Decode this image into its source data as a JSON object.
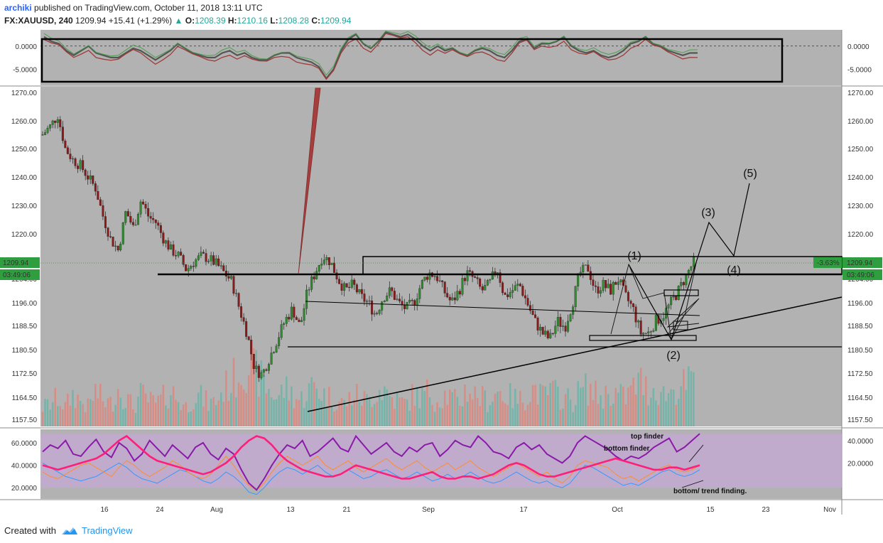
{
  "header": {
    "author": "archiki",
    "published_text": "published on TradingView.com, October 11, 2018 13:11 UTC",
    "symbol": "FX:XAUUSD, 240",
    "last": "1209.94",
    "change": "+15.41 (+1.29%)",
    "change_icon": "triangle-up-icon",
    "o_label": "O:",
    "o_value": "1208.39",
    "h_label": "H:",
    "h_value": "1210.16",
    "l_label": "L:",
    "l_value": "1208.28",
    "c_label": "C:",
    "c_value": "1209.94"
  },
  "footer": {
    "created_with": "Created with",
    "brand": "TradingView",
    "brand_icon": "tradingview-logo-icon"
  },
  "colors": {
    "plot_bg": "#b2b2b2",
    "bull": "#2e8b2e",
    "bear": "#8b1a1a",
    "vol_bull": "#6fb3a6",
    "vol_bear": "#d98880",
    "badge": "#2e9e3e",
    "rsi_band": "#c8a8d8",
    "ind_red": "#9e3a3a",
    "ind_green": "#3f9a3f",
    "ind_dark": "#555555",
    "stoch_purple": "#8a1aa8",
    "stoch_pink": "#ff1f7a",
    "stoch_orange": "#ff8c2a",
    "stoch_blue": "#3399ff"
  },
  "chart_data": [
    {
      "type": "line",
      "panel": "top-oscillator",
      "y_ticks": [
        "0.0000",
        "-5.0000"
      ],
      "y_range": [
        -8.5,
        3.5
      ],
      "series": [
        {
          "values": [
            2.0,
            1.0,
            0.5,
            -1.0,
            -2.0,
            -1.0,
            0.0,
            -1.5,
            -2.0,
            -2.5,
            -2.5,
            -1.5,
            -0.5,
            -1.0,
            -2.0,
            -3.0,
            -2.0,
            -1.0,
            0.5,
            -0.5,
            -1.5,
            -2.0,
            -2.5,
            -2.5,
            -1.5,
            -1.0,
            -2.0,
            -1.5,
            -2.5,
            -3.0,
            -3.0,
            -2.0,
            -1.5,
            -1.5,
            -2.5,
            -3.0,
            -3.5,
            -4.5,
            -7.0,
            -5.0,
            -1.0,
            1.5,
            2.5,
            0.5,
            -0.5,
            1.0,
            3.0,
            2.5,
            2.0,
            2.5,
            1.5,
            0.0,
            -1.0,
            0.0,
            -1.0,
            -0.5,
            -1.5,
            -2.0,
            -1.0,
            -0.5,
            -1.0,
            -2.0,
            -2.5,
            -1.0,
            1.0,
            1.5,
            -0.5,
            0.5,
            0.5,
            1.0,
            2.0,
            0.0,
            -1.0,
            -1.5,
            -1.0,
            -2.0,
            -2.5,
            -2.0,
            -1.0,
            0.5,
            1.0,
            2.0,
            0.5,
            0.0,
            -1.0,
            -1.5,
            -2.0,
            -1.5,
            -1.5
          ]
        }
      ]
    },
    {
      "type": "candlestick",
      "panel": "price",
      "y_ticks": [
        "1270.00",
        "1260.00",
        "1250.00",
        "1240.00",
        "1230.00",
        "1220.00",
        "1210.00",
        "1204.00",
        "1196.00",
        "1188.50",
        "1180.50",
        "1172.50",
        "1164.50",
        "1157.50"
      ],
      "x_ticks": [
        "16",
        "24",
        "Aug",
        "13",
        "21",
        "Sep",
        "17",
        "Oct",
        "15",
        "23",
        "Nov"
      ],
      "last_price_label": "1209.94",
      "countdown_label": "03:49:06",
      "change_pct_label": "-3.63%",
      "close_path": [
        1255,
        1258,
        1262,
        1250,
        1246,
        1244,
        1240,
        1236,
        1226,
        1218,
        1214,
        1228,
        1222,
        1232,
        1226,
        1224,
        1218,
        1214,
        1212,
        1207,
        1210,
        1212,
        1211,
        1209,
        1206,
        1203,
        1194,
        1186,
        1174,
        1172,
        1178,
        1184,
        1190,
        1194,
        1188,
        1200,
        1206,
        1212,
        1210,
        1204,
        1200,
        1202,
        1198,
        1196,
        1192,
        1198,
        1200,
        1196,
        1194,
        1196,
        1202,
        1206,
        1205,
        1200,
        1196,
        1200,
        1206,
        1204,
        1200,
        1202,
        1208,
        1198,
        1200,
        1202,
        1196,
        1190,
        1186,
        1184,
        1190,
        1188,
        1196,
        1206,
        1208,
        1200,
        1202,
        1200,
        1204,
        1198,
        1194,
        1186,
        1186,
        1190,
        1192,
        1196,
        1200,
        1205,
        1209.94
      ],
      "volume_path": [
        0.3,
        0.35,
        0.45,
        0.3,
        0.5,
        0.4,
        0.3,
        0.55,
        0.4,
        0.35,
        0.6,
        0.45,
        0.3,
        0.5,
        0.4,
        0.35,
        0.45,
        0.55,
        0.4,
        0.3,
        0.5,
        0.45,
        0.35,
        0.4,
        0.6,
        0.7,
        0.85,
        1.0,
        0.9,
        0.7,
        0.55,
        0.45,
        0.6,
        0.5,
        0.4,
        0.55,
        0.65,
        0.5,
        0.45,
        0.4,
        0.35,
        0.5,
        0.45,
        0.4,
        0.55,
        0.6,
        0.45,
        0.4,
        0.35,
        0.5,
        0.45,
        0.55,
        0.4,
        0.5,
        0.45,
        0.35,
        0.6,
        0.5,
        0.45,
        0.4,
        0.55,
        0.5,
        0.45,
        0.4,
        0.5,
        0.6,
        0.45,
        0.55,
        0.5,
        0.45,
        0.4,
        0.55,
        0.6,
        0.5,
        0.45,
        0.55,
        0.5,
        0.45,
        0.6,
        0.7,
        0.55,
        0.6,
        0.5,
        0.55,
        0.6,
        0.65,
        0.7
      ],
      "annotations": {
        "wave1": "(1)",
        "wave2": "(2)",
        "wave3": "(3)",
        "wave4": "(4)",
        "wave5": "(5)"
      }
    },
    {
      "type": "line",
      "panel": "bottom-oscillator",
      "y_ticks_left": [
        "60.0000",
        "40.0000",
        "20.0000"
      ],
      "y_ticks_right": [
        "40.0000",
        "20.0000"
      ],
      "y_range": [
        10,
        72
      ],
      "series": [
        {
          "values": [
            52,
            58,
            55,
            62,
            50,
            48,
            56,
            63,
            52,
            47,
            60,
            55,
            44,
            50,
            62,
            55,
            48,
            58,
            52,
            46,
            56,
            60,
            50,
            45,
            55,
            50,
            36,
            24,
            18,
            28,
            40,
            50,
            58,
            55,
            62,
            48,
            52,
            58,
            64,
            55,
            52,
            66,
            58,
            50,
            55,
            60,
            52,
            48,
            56,
            52,
            58,
            60,
            48,
            54,
            62,
            58,
            56,
            66,
            60,
            52,
            50,
            46,
            56,
            60,
            54,
            58,
            50,
            46,
            42,
            48,
            60,
            66,
            62,
            58,
            54,
            48,
            44,
            48,
            46,
            50,
            56,
            60,
            64,
            52,
            56,
            62,
            68
          ]
        },
        {
          "values": [
            40,
            38,
            36,
            38,
            40,
            42,
            44,
            46,
            50,
            56,
            62,
            66,
            60,
            54,
            48,
            44,
            42,
            40,
            38,
            36,
            34,
            32,
            34,
            38,
            42,
            48,
            56,
            62,
            66,
            64,
            58,
            50,
            44,
            40,
            36,
            34,
            32,
            30,
            30,
            32,
            36,
            40,
            38,
            36,
            34,
            32,
            30,
            28,
            28,
            30,
            32,
            34,
            30,
            28,
            28,
            30,
            30,
            28,
            30,
            32,
            36,
            40,
            42,
            40,
            36,
            32,
            30,
            30,
            32,
            34,
            36,
            38,
            40,
            42,
            44,
            46,
            44,
            42,
            40,
            38,
            36,
            36,
            38,
            38,
            36,
            38,
            40
          ]
        },
        {
          "values": [
            34,
            30,
            28,
            32,
            36,
            40,
            42,
            38,
            34,
            30,
            38,
            44,
            40,
            34,
            30,
            34,
            38,
            44,
            40,
            34,
            30,
            28,
            32,
            40,
            48,
            40,
            30,
            22,
            18,
            24,
            34,
            42,
            48,
            44,
            40,
            44,
            48,
            40,
            36,
            40,
            44,
            38,
            34,
            38,
            42,
            46,
            40,
            36,
            40,
            44,
            38,
            34,
            38,
            42,
            36,
            40,
            44,
            38,
            34,
            30,
            34,
            38,
            42,
            38,
            34,
            30,
            34,
            28,
            24,
            30,
            40,
            44,
            42,
            40,
            38,
            32,
            28,
            30,
            26,
            30,
            34,
            38,
            40,
            36,
            34,
            36,
            40
          ]
        },
        {
          "values": [
            42,
            38,
            34,
            30,
            28,
            26,
            28,
            30,
            34,
            38,
            42,
            38,
            32,
            28,
            26,
            24,
            28,
            32,
            36,
            34,
            30,
            26,
            24,
            28,
            34,
            30,
            24,
            16,
            14,
            20,
            28,
            34,
            38,
            36,
            32,
            36,
            40,
            34,
            30,
            32,
            36,
            32,
            28,
            30,
            34,
            36,
            32,
            28,
            30,
            34,
            30,
            26,
            28,
            32,
            28,
            30,
            34,
            30,
            26,
            24,
            26,
            30,
            34,
            30,
            26,
            24,
            26,
            22,
            20,
            24,
            32,
            40,
            38,
            34,
            30,
            26,
            22,
            24,
            22,
            26,
            30,
            34,
            36,
            32,
            30,
            32,
            36
          ]
        }
      ],
      "annotations": {
        "top": "top finder",
        "bottom": "bottom finder",
        "trend": "bottom/ trend finding."
      }
    }
  ]
}
